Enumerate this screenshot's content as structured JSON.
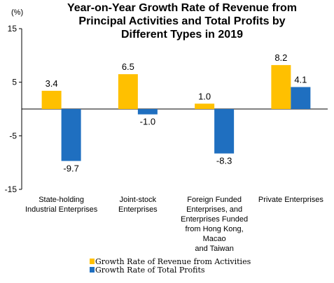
{
  "chart_data": {
    "type": "bar",
    "title": [
      "Year-on-Year Growth Rate of Revenue from",
      "Principal Activities and  Total Profits by",
      "Different Types in 2019"
    ],
    "unit_label": "(%)",
    "ylim": [
      -15,
      15
    ],
    "yticks": [
      15,
      5,
      -5,
      -15
    ],
    "categories": [
      [
        "State-holding",
        "Industrial Enterprises"
      ],
      [
        "Joint-stock",
        "Enterprises"
      ],
      [
        "Foreign Funded",
        "Enterprises, and",
        "Enterprises Funded",
        "from Hong Kong,",
        "Macao",
        "and Taiwan"
      ],
      [
        "Private Enterprises"
      ]
    ],
    "series": [
      {
        "name": "Growth Rate of Revenue from Activities",
        "color": "#FFC000",
        "values": [
          3.4,
          6.5,
          1.0,
          8.2
        ],
        "labels": [
          "3.4",
          "6.5",
          "1.0",
          "8.2"
        ]
      },
      {
        "name": "Growth Rate of Total Profits",
        "color": "#1F6FC0",
        "values": [
          -9.7,
          -1.0,
          -8.3,
          4.1
        ],
        "labels": [
          "-9.7",
          "-1.0",
          "-8.3",
          "4.1"
        ]
      }
    ],
    "legend_position": "bottom-center",
    "grid": false
  }
}
